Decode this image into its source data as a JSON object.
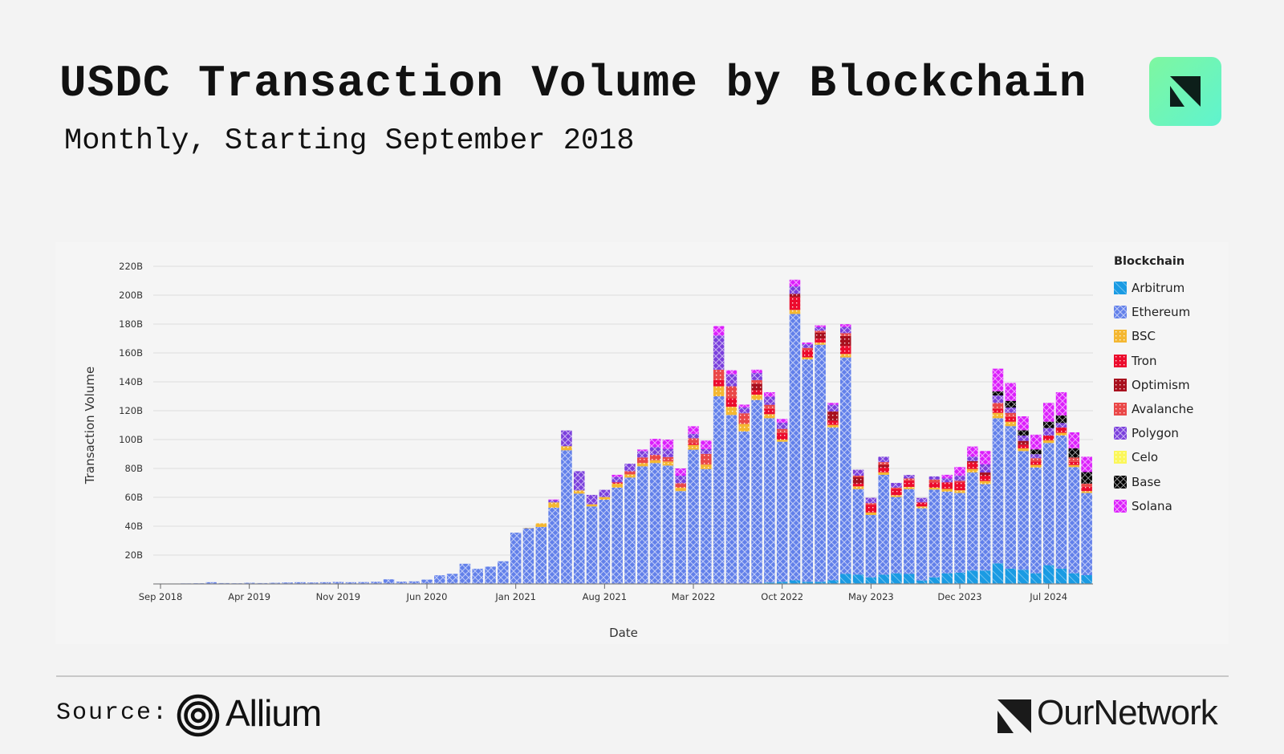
{
  "header": {
    "title": "USDC Transaction Volume by Blockchain",
    "subtitle": "Monthly, Starting September 2018"
  },
  "footer": {
    "source_label": "Source:",
    "source_name": "Allium",
    "brand_name": "OurNetwork"
  },
  "chart_data": {
    "type": "bar",
    "stacked": true,
    "frequency": "monthly",
    "x_start": "Sep 2018",
    "x_end": "Oct 2024",
    "xlabel": "Date",
    "ylabel": "Transaction Volume",
    "ylim": [
      0,
      220
    ],
    "y_unit": "B",
    "y_ticks": [
      "20B",
      "40B",
      "60B",
      "80B",
      "100B",
      "120B",
      "140B",
      "160B",
      "180B",
      "200B",
      "220B"
    ],
    "x_ticks": [
      "Sep 2018",
      "Apr 2019",
      "Nov 2019",
      "Jun 2020",
      "Jan 2021",
      "Aug 2021",
      "Mar 2022",
      "Oct 2022",
      "May 2023",
      "Dec 2023",
      "Jul 2024"
    ],
    "grid": "horizontal",
    "legend_title": "Blockchain",
    "legend_position": "right",
    "series": [
      {
        "name": "Arbitrum",
        "color": "#1a9be3",
        "pattern": "diagonal",
        "values": [
          0,
          0,
          0,
          0,
          0,
          0,
          0,
          0,
          0,
          0,
          0,
          0,
          0,
          0,
          0,
          0,
          0,
          0,
          0,
          0,
          0,
          0,
          0,
          0,
          0,
          0,
          0,
          0,
          0,
          0,
          0,
          0,
          0,
          0,
          0,
          0,
          0,
          0,
          0,
          0,
          0,
          0,
          0,
          0,
          0.3,
          0.3,
          0.3,
          0.5,
          1,
          1.5,
          2.5,
          1.5,
          1.5,
          2.5,
          7,
          6.5,
          4.6,
          6.5,
          7.4,
          7,
          2.4,
          4.6,
          7.4,
          7.8,
          9.3,
          9.3,
          14.3,
          10.6,
          9.8,
          7.4,
          13,
          10.6,
          7.4,
          6.1
        ]
      },
      {
        "name": "Ethereum",
        "color": "#6280ea",
        "pattern": "crosshatch",
        "values": [
          0.3,
          0.3,
          0.4,
          0.5,
          1.2,
          0.6,
          0.5,
          0.8,
          0.6,
          0.8,
          1.0,
          1.2,
          1.0,
          1.2,
          1.4,
          1.2,
          1.3,
          1.5,
          3.2,
          1.6,
          1.8,
          3.0,
          6.0,
          7.0,
          14.0,
          10.5,
          12.0,
          15.7,
          35.5,
          38.6,
          39.5,
          52.8,
          92.6,
          62.6,
          53.7,
          58.3,
          66.7,
          73.7,
          81.5,
          83.7,
          82,
          64.3,
          93,
          79.6,
          129.7,
          116.7,
          105.3,
          126.9,
          113.8,
          97,
          184.5,
          154,
          164.2,
          105.8,
          149.9,
          59.2,
          43.2,
          69.1,
          52.8,
          58.7,
          50,
          60.8,
          56.5,
          55.2,
          67.9,
          59.8,
          100.5,
          98.7,
          82.2,
          73.2,
          84.6,
          92.2,
          73.5,
          56.9
        ]
      },
      {
        "name": "BSC",
        "color": "#f4b731",
        "pattern": "dots",
        "values": [
          0,
          0,
          0,
          0,
          0,
          0,
          0,
          0,
          0,
          0,
          0,
          0,
          0,
          0,
          0,
          0,
          0,
          0,
          0,
          0,
          0,
          0,
          0,
          0,
          0,
          0,
          0,
          0,
          0,
          0.3,
          2.5,
          3.7,
          2.8,
          2.2,
          1.5,
          1.9,
          2.8,
          2.2,
          2.2,
          2,
          2.8,
          2.4,
          3.3,
          3.1,
          6.9,
          5.7,
          5.2,
          3.7,
          2.8,
          1.5,
          2.8,
          1.5,
          1.5,
          1.9,
          2.4,
          1.9,
          1.7,
          1.7,
          1.3,
          1.5,
          1.3,
          1.3,
          1.9,
          1.9,
          2.4,
          2.2,
          3.7,
          3.1,
          1.9,
          1.9,
          1.9,
          1.9,
          1.5,
          1.3
        ]
      },
      {
        "name": "Tron",
        "color": "#ec0b2d",
        "pattern": "dots",
        "values": [
          0,
          0,
          0,
          0,
          0,
          0,
          0,
          0,
          0,
          0,
          0,
          0,
          0,
          0,
          0,
          0,
          0,
          0,
          0,
          0,
          0,
          0,
          0,
          0,
          0,
          0,
          0,
          0,
          0,
          0,
          0,
          0,
          0,
          0,
          0,
          0,
          0.9,
          0,
          0,
          0,
          0,
          0,
          1.3,
          0,
          4.3,
          5.9,
          0,
          3.1,
          3.7,
          4.6,
          8.9,
          5,
          2.6,
          2.8,
          5.6,
          1.9,
          5.2,
          3.3,
          4.3,
          4.4,
          2.8,
          3.7,
          4.6,
          5.6,
          4.6,
          3.7,
          2.8,
          3.3,
          2.4,
          2.2,
          3.3,
          3.7,
          2.2,
          3
        ]
      },
      {
        "name": "Optimism",
        "color": "#a8101e",
        "pattern": "dots",
        "values": [
          0,
          0,
          0,
          0,
          0,
          0,
          0,
          0,
          0,
          0,
          0,
          0,
          0,
          0,
          0,
          0,
          0,
          0,
          0,
          0,
          0,
          0,
          0,
          0,
          0,
          0,
          0,
          0,
          0,
          0,
          0,
          0,
          0,
          0,
          0,
          0,
          0,
          0,
          0,
          0,
          0,
          0,
          0,
          0,
          0,
          0,
          0,
          4.6,
          0,
          0,
          2.2,
          0,
          4.3,
          6.5,
          6.9,
          4.6,
          0,
          1.9,
          0,
          0,
          0,
          0,
          0,
          0,
          0.9,
          2.2,
          0,
          0,
          2.8,
          0,
          0,
          0,
          0,
          0
        ]
      },
      {
        "name": "Avalanche",
        "color": "#ea4848",
        "pattern": "dots",
        "values": [
          0,
          0,
          0,
          0,
          0,
          0,
          0,
          0,
          0,
          0,
          0,
          0,
          0,
          0,
          0,
          0,
          0,
          0,
          0,
          0,
          0,
          0,
          0,
          0,
          0,
          0,
          0,
          0,
          0,
          0,
          0,
          0,
          0,
          0,
          0,
          0,
          0,
          2.2,
          3.9,
          3.7,
          3.1,
          3.1,
          3.3,
          7.4,
          7.2,
          8.3,
          7.4,
          2.4,
          2.8,
          2.8,
          0,
          1.5,
          1.3,
          0,
          1.9,
          0.9,
          1.3,
          1.9,
          0.9,
          1.5,
          0,
          1.9,
          0,
          0.9,
          0,
          0,
          4.1,
          2.8,
          0,
          2.4,
          0,
          0,
          3,
          2.2
        ]
      },
      {
        "name": "Polygon",
        "color": "#7a3fdc",
        "pattern": "crosshatch",
        "values": [
          0,
          0,
          0,
          0,
          0,
          0,
          0,
          0,
          0,
          0,
          0,
          0,
          0,
          0,
          0,
          0,
          0,
          0,
          0,
          0,
          0,
          0,
          0,
          0,
          0,
          0,
          0,
          0,
          0,
          0,
          0,
          1.5,
          10.9,
          13.3,
          6.5,
          5,
          3.7,
          5.2,
          4.4,
          5.4,
          5.6,
          5.2,
          3.1,
          3.3,
          23.7,
          8.3,
          4.1,
          5,
          5.6,
          4.3,
          5.2,
          2.6,
          2.4,
          4.6,
          4.3,
          4.1,
          3.7,
          3.7,
          3.3,
          2.4,
          3.1,
          2.2,
          2.8,
          3.7,
          3.1,
          5.6,
          5.2,
          3.7,
          3.7,
          2.8,
          5.2,
          3.1,
          0,
          0
        ]
      },
      {
        "name": "Celo",
        "color": "#fbf75a",
        "pattern": "dots",
        "values": [
          0,
          0,
          0,
          0,
          0,
          0,
          0,
          0,
          0,
          0,
          0,
          0,
          0,
          0,
          0,
          0,
          0,
          0,
          0,
          0,
          0,
          0,
          0,
          0,
          0,
          0,
          0,
          0,
          0,
          0,
          0,
          0,
          0,
          0,
          0,
          0,
          0,
          0,
          0,
          0,
          0,
          0,
          0,
          0,
          0,
          0,
          0,
          0,
          0,
          0,
          0,
          0,
          0,
          0,
          0,
          0,
          0,
          0,
          0,
          0,
          0,
          0,
          0,
          0,
          0,
          0,
          0,
          0,
          0,
          0,
          0,
          0,
          0,
          0
        ]
      },
      {
        "name": "Base",
        "color": "#000000",
        "pattern": "crosshatch",
        "values": [
          0,
          0,
          0,
          0,
          0,
          0,
          0,
          0,
          0,
          0,
          0,
          0,
          0,
          0,
          0,
          0,
          0,
          0,
          0,
          0,
          0,
          0,
          0,
          0,
          0,
          0,
          0,
          0,
          0,
          0,
          0,
          0,
          0,
          0,
          0,
          0,
          0,
          0,
          0,
          0,
          0,
          0,
          0,
          0,
          0,
          0,
          0,
          0,
          0,
          0,
          0,
          0,
          0,
          0,
          0,
          0,
          0,
          0,
          0,
          0,
          0,
          0,
          0,
          0,
          0,
          0,
          2.8,
          4.6,
          3.7,
          3.3,
          4.4,
          5.2,
          6.3,
          8
        ]
      },
      {
        "name": "Solana",
        "color": "#dc1ffc",
        "pattern": "crosshatch",
        "values": [
          0,
          0,
          0,
          0,
          0,
          0,
          0,
          0,
          0,
          0,
          0,
          0,
          0,
          0,
          0,
          0,
          0,
          0,
          0,
          0,
          0,
          0,
          0,
          0,
          0,
          0,
          0,
          0,
          0,
          0,
          0,
          0.5,
          0,
          0,
          0,
          0,
          1.5,
          0,
          1.1,
          5.7,
          6.5,
          5,
          5.2,
          5.9,
          6.5,
          2.8,
          1.9,
          2.2,
          3.1,
          2.6,
          4.6,
          1.1,
          1.3,
          1.3,
          1.9,
          0,
          0,
          0,
          0,
          0,
          0,
          0,
          2.4,
          5.9,
          7,
          9.3,
          15.7,
          12.4,
          9.6,
          10.2,
          13,
          16.1,
          11.1,
          10.6
        ]
      }
    ]
  }
}
